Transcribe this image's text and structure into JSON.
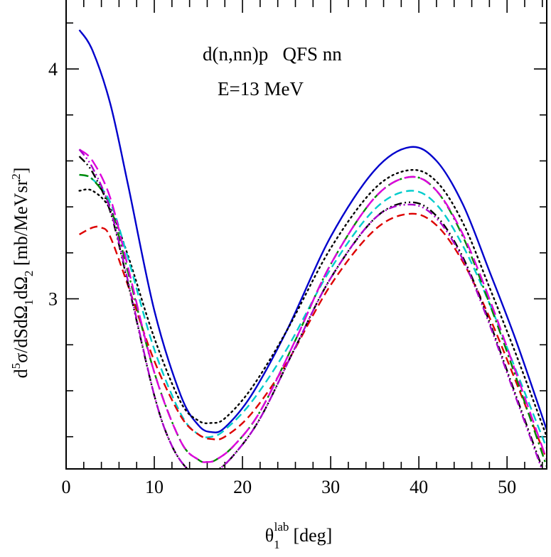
{
  "chart_data": {
    "type": "line",
    "annotations": [
      "d(n,nn)p   QFS nn",
      "E=13 MeV"
    ],
    "xlabel": {
      "symbol": "θ",
      "sub": "1",
      "sup": "lab",
      "unit": "[deg]"
    },
    "ylabel": {
      "p1": "d",
      "p1sup": "5",
      "p2": "σ/dSdΩ",
      "p2sub": "1",
      "p3": "dΩ",
      "p3sub": "2",
      "p4": " [mb/MeVsr",
      "p4sup": "2",
      "p5": "]"
    },
    "xlim": [
      0,
      54.5
    ],
    "ylim": [
      2.26,
      4.3
    ],
    "x_ticks": [
      "0",
      "10",
      "20",
      "30",
      "40",
      "50"
    ],
    "y_ticks": [
      "3",
      "4"
    ],
    "series": [
      {
        "color": "#0000cc",
        "style": "solid",
        "x": [
          1.5,
          3,
          5,
          7,
          10,
          13,
          15,
          16.5,
          18,
          21,
          25,
          30,
          35,
          39,
          42,
          45,
          48,
          51,
          54.5
        ],
        "y": [
          4.17,
          4.08,
          3.85,
          3.5,
          2.95,
          2.58,
          2.45,
          2.42,
          2.44,
          2.58,
          2.86,
          3.27,
          3.56,
          3.66,
          3.6,
          3.41,
          3.12,
          2.82,
          2.43
        ]
      },
      {
        "color": "#000000",
        "style": "dotted",
        "x": [
          1.5,
          3,
          5,
          7,
          10,
          13,
          15,
          16.5,
          18,
          21,
          25,
          30,
          35,
          39,
          42,
          45,
          48,
          51,
          54.5
        ],
        "y": [
          3.47,
          3.47,
          3.39,
          3.19,
          2.83,
          2.55,
          2.47,
          2.46,
          2.48,
          2.61,
          2.86,
          3.22,
          3.48,
          3.56,
          3.51,
          3.33,
          3.05,
          2.76,
          2.4
        ]
      },
      {
        "color": "#00cccc",
        "style": "dashed",
        "x": [
          1.5,
          3,
          5,
          7,
          10,
          13,
          15,
          16.5,
          18,
          21,
          25,
          30,
          35,
          39,
          42,
          45,
          48,
          51,
          54.5
        ],
        "y": [
          3.54,
          3.52,
          3.42,
          3.18,
          2.78,
          2.5,
          2.41,
          2.4,
          2.43,
          2.55,
          2.78,
          3.13,
          3.39,
          3.47,
          3.41,
          3.23,
          2.98,
          2.69,
          2.35
        ]
      },
      {
        "color": "#dd0000",
        "style": "dashed",
        "x": [
          1.5,
          3,
          4,
          5,
          7,
          10,
          13,
          15,
          16.5,
          18,
          21,
          25,
          30,
          35,
          39,
          42,
          45,
          48,
          51,
          54.5
        ],
        "y": [
          3.28,
          3.31,
          3.31,
          3.27,
          3.06,
          2.73,
          2.49,
          2.41,
          2.39,
          2.4,
          2.5,
          2.72,
          3.06,
          3.3,
          3.37,
          3.32,
          3.16,
          2.92,
          2.64,
          2.3
        ]
      },
      {
        "color": "#008800",
        "style": "dashdot",
        "x": [
          1.5,
          3,
          5,
          7,
          10,
          13,
          15,
          16,
          17,
          19,
          22,
          26,
          30,
          35,
          39,
          42,
          45,
          48,
          51,
          54.5
        ],
        "y": [
          3.54,
          3.52,
          3.4,
          3.12,
          2.68,
          2.38,
          2.3,
          2.29,
          2.3,
          2.36,
          2.51,
          2.82,
          3.15,
          3.44,
          3.53,
          3.47,
          3.27,
          2.98,
          2.66,
          2.27
        ]
      },
      {
        "color": "#dd00dd",
        "style": "longdash",
        "x": [
          1.5,
          3,
          5,
          7,
          10,
          13,
          15,
          16,
          17,
          19,
          22,
          26,
          30,
          35,
          39,
          42,
          45,
          48,
          51,
          54.5
        ],
        "y": [
          3.65,
          3.6,
          3.44,
          3.14,
          2.68,
          2.38,
          2.3,
          2.29,
          2.3,
          2.36,
          2.51,
          2.82,
          3.15,
          3.44,
          3.53,
          3.47,
          3.28,
          3.0,
          2.68,
          2.3
        ]
      },
      {
        "color": "#000000",
        "style": "dashdotdot",
        "x": [
          1.5,
          3,
          5,
          7,
          10,
          12,
          14,
          15.5,
          17,
          19,
          22,
          26,
          30,
          35,
          39,
          42,
          45,
          48,
          51,
          54.5
        ],
        "y": [
          3.62,
          3.55,
          3.38,
          3.07,
          2.58,
          2.36,
          2.25,
          2.23,
          2.25,
          2.32,
          2.48,
          2.79,
          3.09,
          3.35,
          3.42,
          3.36,
          3.18,
          2.9,
          2.58,
          2.21
        ]
      },
      {
        "color": "#aa00cc",
        "style": "dashdotdot",
        "x": [
          1.5,
          3,
          5,
          7,
          10,
          12,
          14,
          15.5,
          17,
          19,
          22,
          26,
          30,
          35,
          39,
          42,
          45,
          48,
          51,
          54.5
        ],
        "y": [
          3.65,
          3.57,
          3.39,
          3.08,
          2.58,
          2.36,
          2.25,
          2.23,
          2.25,
          2.32,
          2.48,
          2.79,
          3.09,
          3.35,
          3.41,
          3.35,
          3.17,
          2.89,
          2.57,
          2.2
        ]
      }
    ]
  }
}
